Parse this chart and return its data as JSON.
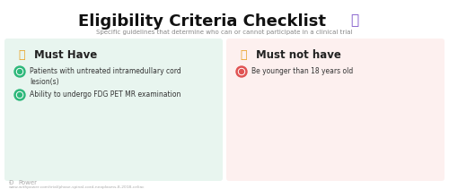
{
  "title": "Eligibility Criteria Checklist",
  "subtitle": "Specific guidelines that determine who can or cannot participate in a clinical trial",
  "left_panel_bg": "#e8f5ef",
  "right_panel_bg": "#fdf0ef",
  "left_header_text": "Must Have",
  "right_header_text": "Must not have",
  "left_items": [
    "Patients with untreated intramedullary cord\nlesion(s)",
    "Ability to undergo FDG PET MR examination"
  ],
  "right_items": [
    "Be younger than 18 years old"
  ],
  "include_icon_color": "#2db87a",
  "exclude_icon_color": "#e05252",
  "background_color": "#ffffff",
  "title_color": "#111111",
  "subtitle_color": "#888888",
  "footer_color": "#aaaaaa",
  "header_text_color": "#222222",
  "item_text_color": "#333333",
  "footer_text": "Đ Power",
  "footer_url": "www.withpower.com/trial/phase-spinal-cord-neoplasms-8-2018-celiac",
  "clipboard_icon_color": "#7b52c8",
  "thumbs_up_color": "#e8a020",
  "thumbs_down_color": "#e8a020"
}
